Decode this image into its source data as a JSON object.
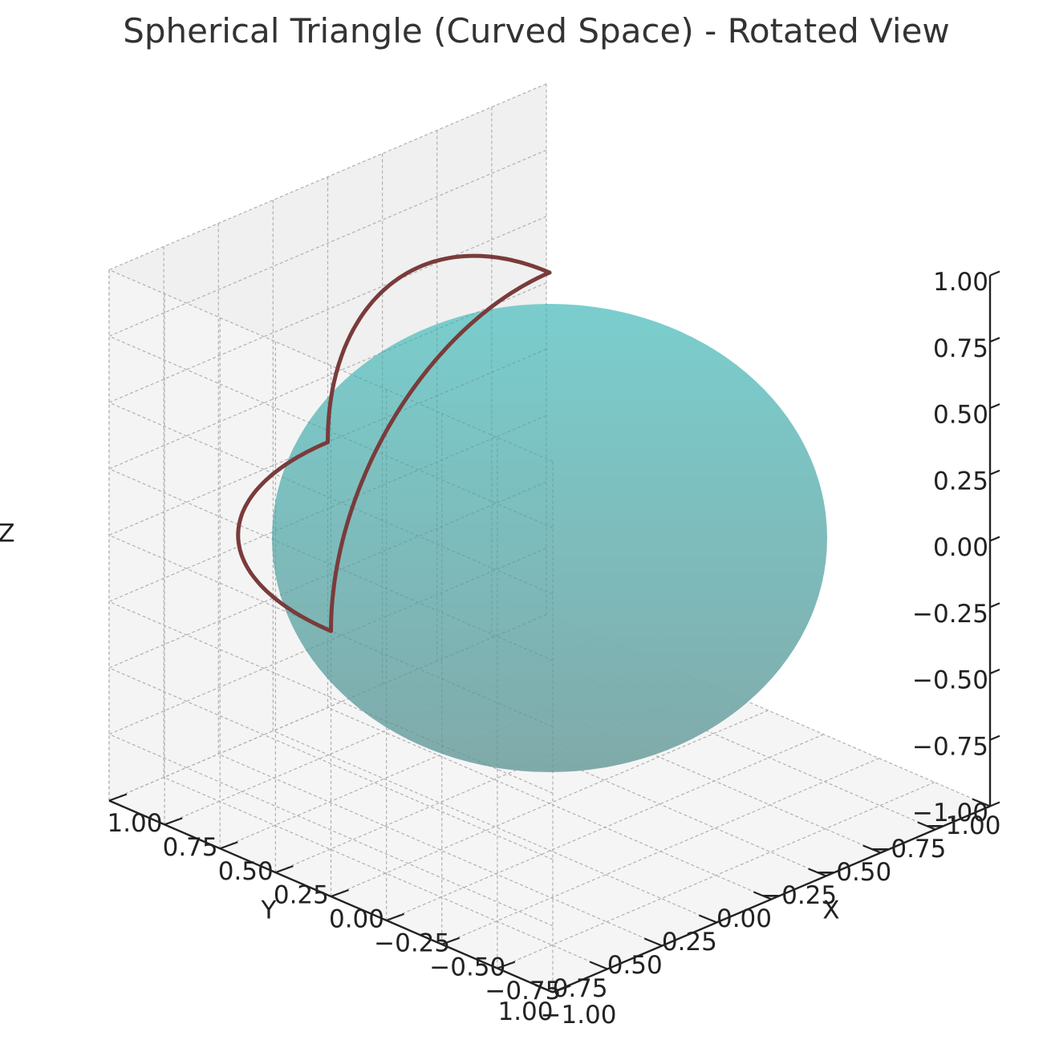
{
  "chart_data": {
    "type": "surface3d",
    "title": "Spherical Triangle (Curved Space) - Rotated View",
    "xlabel": "X",
    "ylabel": "Y",
    "zlabel": "Z",
    "xlim": [
      -1.0,
      1.0
    ],
    "ylim": [
      -1.0,
      1.0
    ],
    "zlim": [
      -1.0,
      1.0
    ],
    "ticks": [
      "−1.00",
      "−0.75",
      "−0.50",
      "−0.25",
      "0.00",
      "0.25",
      "0.50",
      "0.75",
      "1.00"
    ],
    "grid": true,
    "view": {
      "elevation_deg": 20,
      "azimuth_deg": 45
    },
    "surface": {
      "shape": "unit sphere",
      "radius": 1.0,
      "color": "#6cc5c5"
    },
    "triangle": {
      "color": "#7a3b3b",
      "vertices": [
        [
          1,
          0,
          0
        ],
        [
          0,
          1,
          0
        ],
        [
          0,
          0,
          1
        ]
      ],
      "edges": "great-circle arcs"
    }
  }
}
